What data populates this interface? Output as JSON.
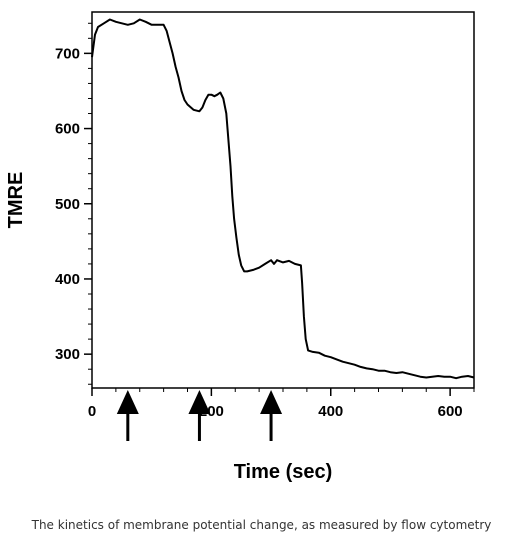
{
  "chart_data": {
    "type": "line",
    "title": "",
    "xlabel": "Time (sec)",
    "ylabel": "TMRE",
    "xlim": [
      0,
      640
    ],
    "ylim": [
      255,
      755
    ],
    "x_ticks": [
      0,
      200,
      400,
      600
    ],
    "x_tick_labels": [
      "0",
      "200",
      "400",
      "600"
    ],
    "y_ticks": [
      300,
      400,
      500,
      600,
      700
    ],
    "y_tick_labels": [
      "300",
      "400",
      "500",
      "600",
      "700"
    ],
    "grid": false,
    "legend": "none",
    "arrow_times": [
      60,
      180,
      300
    ],
    "series": [
      {
        "color": "#000000",
        "points": [
          [
            0,
            695
          ],
          [
            5,
            725
          ],
          [
            10,
            735
          ],
          [
            20,
            740
          ],
          [
            30,
            745
          ],
          [
            40,
            742
          ],
          [
            50,
            740
          ],
          [
            60,
            738
          ],
          [
            70,
            740
          ],
          [
            80,
            745
          ],
          [
            90,
            742
          ],
          [
            100,
            738
          ],
          [
            110,
            738
          ],
          [
            120,
            738
          ],
          [
            125,
            730
          ],
          [
            130,
            715
          ],
          [
            135,
            700
          ],
          [
            140,
            682
          ],
          [
            145,
            668
          ],
          [
            150,
            650
          ],
          [
            155,
            638
          ],
          [
            160,
            632
          ],
          [
            170,
            625
          ],
          [
            180,
            623
          ],
          [
            185,
            628
          ],
          [
            190,
            638
          ],
          [
            195,
            645
          ],
          [
            200,
            645
          ],
          [
            205,
            643
          ],
          [
            210,
            645
          ],
          [
            215,
            648
          ],
          [
            220,
            640
          ],
          [
            225,
            620
          ],
          [
            228,
            590
          ],
          [
            232,
            550
          ],
          [
            235,
            510
          ],
          [
            238,
            480
          ],
          [
            242,
            455
          ],
          [
            246,
            432
          ],
          [
            250,
            418
          ],
          [
            255,
            410
          ],
          [
            260,
            410
          ],
          [
            270,
            412
          ],
          [
            280,
            415
          ],
          [
            290,
            420
          ],
          [
            300,
            425
          ],
          [
            305,
            420
          ],
          [
            310,
            425
          ],
          [
            320,
            422
          ],
          [
            330,
            424
          ],
          [
            340,
            420
          ],
          [
            350,
            418
          ],
          [
            352,
            395
          ],
          [
            355,
            350
          ],
          [
            358,
            320
          ],
          [
            362,
            305
          ],
          [
            370,
            303
          ],
          [
            380,
            302
          ],
          [
            390,
            298
          ],
          [
            400,
            296
          ],
          [
            410,
            293
          ],
          [
            420,
            290
          ],
          [
            430,
            288
          ],
          [
            440,
            286
          ],
          [
            450,
            283
          ],
          [
            460,
            281
          ],
          [
            470,
            280
          ],
          [
            480,
            278
          ],
          [
            490,
            278
          ],
          [
            500,
            276
          ],
          [
            510,
            275
          ],
          [
            520,
            276
          ],
          [
            530,
            274
          ],
          [
            540,
            272
          ],
          [
            550,
            270
          ],
          [
            560,
            269
          ],
          [
            570,
            270
          ],
          [
            580,
            271
          ],
          [
            590,
            270
          ],
          [
            600,
            270
          ],
          [
            610,
            268
          ],
          [
            620,
            270
          ],
          [
            630,
            271
          ],
          [
            640,
            269
          ]
        ]
      }
    ]
  },
  "caption": "The kinetics of membrane potential change, as measured by flow cytometry"
}
